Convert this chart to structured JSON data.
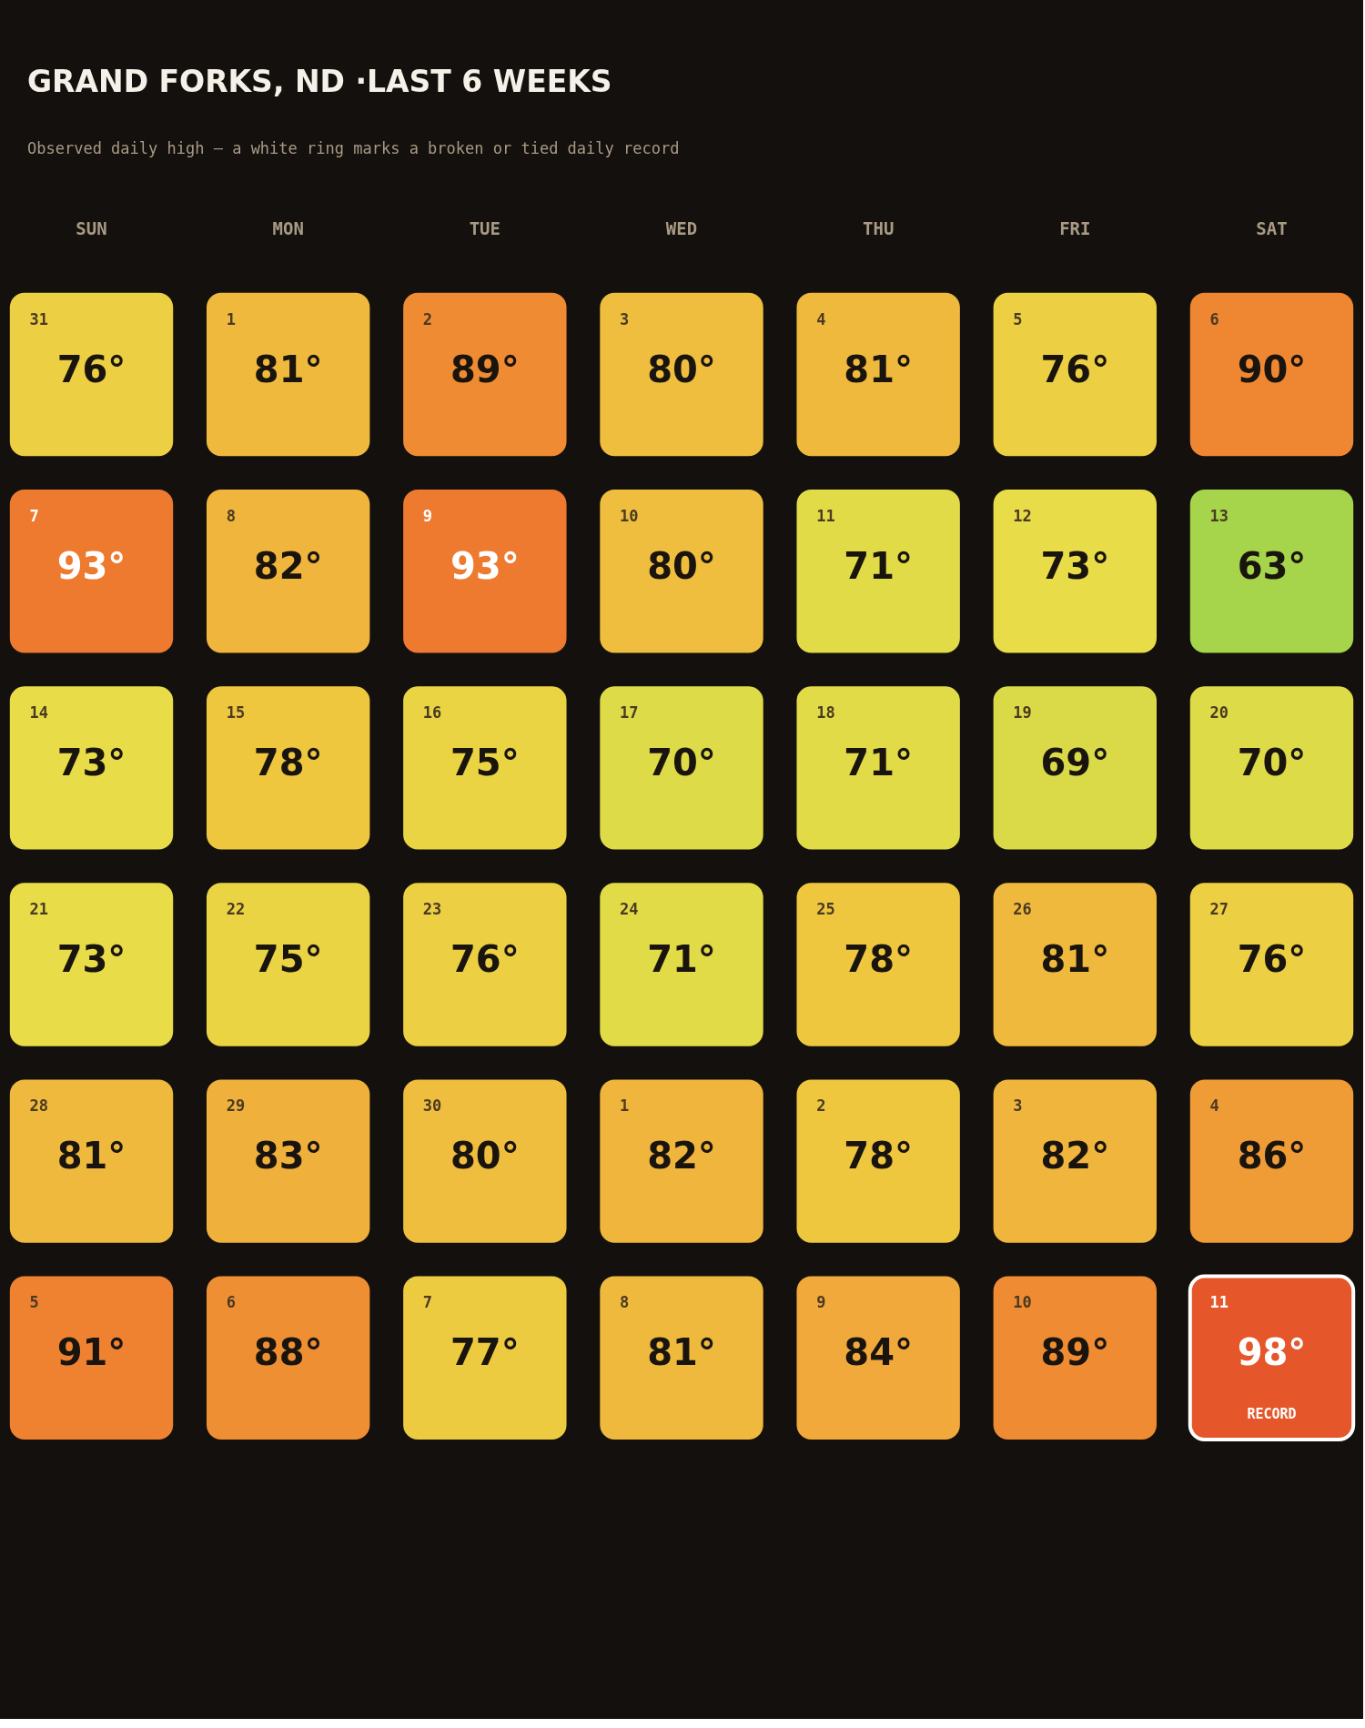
{
  "chart_data": {
    "type": "heatmap",
    "title": "GRAND FORKS, ND ·LAST 6 WEEKS",
    "subtitle": "Observed daily high — a white ring marks a broken or tied daily record",
    "categories": [
      "SUN",
      "MON",
      "TUE",
      "WED",
      "THU",
      "FRI",
      "SAT"
    ],
    "y_categories": [
      null,
      null,
      null,
      null,
      null,
      null
    ],
    "cells": [
      [
        76,
        81,
        89,
        80,
        81,
        76,
        90
      ],
      [
        93,
        82,
        93,
        80,
        71,
        73,
        63
      ],
      [
        73,
        78,
        75,
        70,
        71,
        69,
        70
      ],
      [
        73,
        75,
        76,
        71,
        78,
        81,
        76
      ],
      [
        81,
        83,
        80,
        82,
        78,
        82,
        86
      ],
      [
        91,
        88,
        77,
        81,
        84,
        89,
        98
      ]
    ],
    "cell_labels": [
      [
        "76°",
        "81°",
        "89°",
        "80°",
        "81°",
        "76°",
        "90°"
      ],
      [
        "93°",
        "82°",
        "93°",
        "80°",
        "71°",
        "73°",
        "63°"
      ],
      [
        "73°",
        "78°",
        "75°",
        "70°",
        "71°",
        "69°",
        "70°"
      ],
      [
        "73°",
        "75°",
        "76°",
        "71°",
        "78°",
        "81°",
        "76°"
      ],
      [
        "81°",
        "83°",
        "80°",
        "82°",
        "78°",
        "82°",
        "86°"
      ],
      [
        "91°",
        "88°",
        "77°",
        "81°",
        "84°",
        "89°",
        "98°\nRECORD"
      ]
    ],
    "annotations": [
      "31",
      "1",
      "2",
      "3",
      "4",
      "5",
      "6",
      "7",
      "8",
      "9",
      "10",
      "11",
      "12",
      "13",
      "14",
      "15",
      "16",
      "17",
      "18",
      "19",
      "20",
      "21",
      "22",
      "23",
      "24",
      "25",
      "26",
      "27",
      "28",
      "29",
      "30",
      "1",
      "2",
      "3",
      "4",
      "5",
      "6",
      "7",
      "8",
      "9",
      "10",
      "11"
    ],
    "colors": [
      "#a6d44a",
      "#d6da48",
      "#e8dc48",
      "#eec73f",
      "#f0b03c",
      "#ef8f33",
      "#ee7a30",
      "#e5572a"
    ],
    "tick_labels": "x"
  }
}
